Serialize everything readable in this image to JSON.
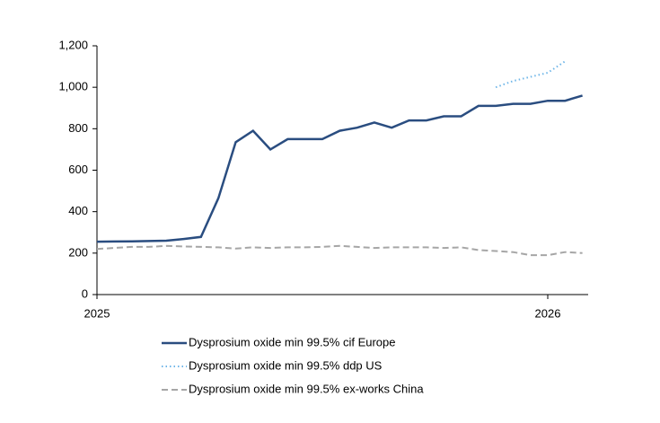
{
  "chart_data": {
    "type": "line",
    "categories": [
      "2025",
      null,
      null,
      null,
      null,
      null,
      null,
      null,
      null,
      null,
      null,
      null,
      null,
      null,
      null,
      null,
      null,
      null,
      null,
      null,
      null,
      null,
      null,
      null,
      null,
      null,
      "2026",
      null,
      null
    ],
    "series": [
      {
        "name": "Dysprosium oxide min 99.5% cif Europe",
        "color": "#2a4d80",
        "style": "solid",
        "values": [
          255,
          256,
          257,
          258,
          260,
          268,
          278,
          465,
          735,
          790,
          700,
          750,
          750,
          750,
          790,
          805,
          830,
          805,
          840,
          840,
          860,
          860,
          910,
          910,
          920,
          920,
          935,
          935,
          960
        ]
      },
      {
        "name": "Dysprosium oxide min 99.5% ddp US",
        "color": "#6fb6e8",
        "style": "dotted",
        "values": [
          null,
          null,
          null,
          null,
          null,
          null,
          null,
          null,
          null,
          null,
          null,
          null,
          null,
          null,
          null,
          null,
          null,
          null,
          null,
          null,
          null,
          null,
          null,
          1000,
          1030,
          1050,
          1070,
          1125,
          null
        ]
      },
      {
        "name": "Dysprosium oxide min 99.5% ex-works China",
        "color": "#a6a6a6",
        "style": "dashed",
        "values": [
          220,
          225,
          230,
          230,
          235,
          232,
          230,
          228,
          222,
          228,
          225,
          228,
          228,
          230,
          235,
          230,
          225,
          228,
          228,
          228,
          225,
          228,
          215,
          210,
          205,
          190,
          190,
          205,
          200
        ]
      }
    ],
    "ylim": [
      0,
      1200
    ],
    "yticks": [
      0,
      200,
      400,
      600,
      800,
      {
        "value": 1000,
        "label": "1,000"
      },
      {
        "value": 1200,
        "label": "1,200"
      }
    ],
    "legend": "bottom"
  }
}
